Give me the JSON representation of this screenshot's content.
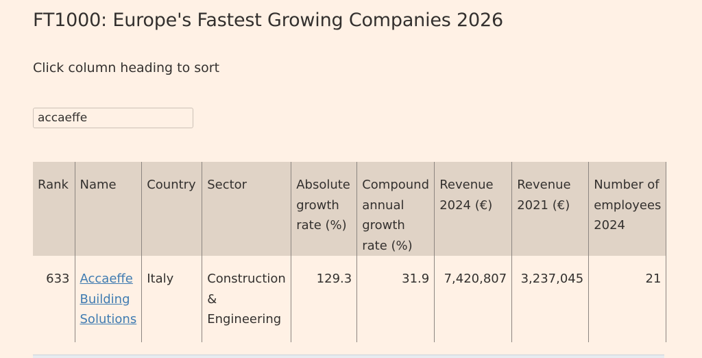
{
  "page": {
    "title": "FT1000: Europe's Fastest Growing Companies 2026",
    "hint": "Click column heading to sort"
  },
  "search": {
    "value": "accaeffe"
  },
  "table": {
    "headers": [
      "Rank",
      "Name",
      "Country",
      "Sector",
      "Absolute growth rate (%)",
      "Compound annual growth rate (%)",
      "Revenue 2024 (€)",
      "Revenue 2021 (€)",
      "Number of employees 2024"
    ],
    "rows": [
      {
        "rank": "633",
        "name": "Accaeffe Building Solutions",
        "country": "Italy",
        "sector": "Construction & Engineering",
        "absolute_growth": "129.3",
        "cagr": "31.9",
        "revenue_2024": "7,420,807",
        "revenue_2021": "3,237,045",
        "employees_2024": "21"
      }
    ]
  },
  "colors": {
    "background": "#fff1e5",
    "header_bg": "#e0d3c6",
    "link": "#3f7bb1",
    "text": "#33302e"
  }
}
